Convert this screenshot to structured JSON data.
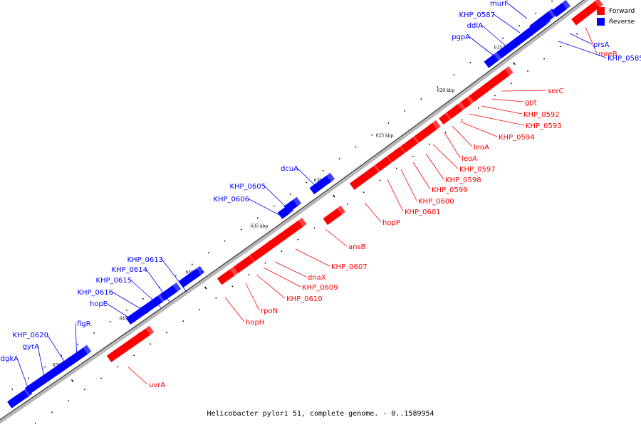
{
  "caption": "Helicobacter pylori 51, complete genome. - 0..1589954",
  "legend": [
    {
      "label": "Forward",
      "color": "#ff0000"
    },
    {
      "label": "Reverse",
      "color": "#0000ff"
    }
  ],
  "colors": {
    "forward": "#ff0000",
    "reverse": "#0000ff",
    "backbone": "#7a7a7a"
  },
  "ticks": [
    {
      "label": "615 kbp",
      "kbp": 615
    },
    {
      "label": "620 kbp",
      "kbp": 620
    },
    {
      "label": "625 kbp",
      "kbp": 625
    },
    {
      "label": "630 kbp",
      "kbp": 630
    },
    {
      "label": "635 kbp",
      "kbp": 635
    },
    {
      "label": "640 kbp",
      "kbp": 640
    },
    {
      "label": "645 kbp",
      "kbp": 645
    },
    {
      "label": "650 kbp",
      "kbp": 650
    }
  ],
  "genes": [
    {
      "name": "mreB",
      "strand": "forward"
    },
    {
      "name": "prsA",
      "strand": "reverse"
    },
    {
      "name": "KHP_0585",
      "strand": "reverse"
    },
    {
      "name": "murF",
      "strand": "reverse"
    },
    {
      "name": "KHP_0587",
      "strand": "reverse"
    },
    {
      "name": "ddlA",
      "strand": "reverse"
    },
    {
      "name": "pgpA",
      "strand": "reverse"
    },
    {
      "name": "serC",
      "strand": "forward"
    },
    {
      "name": "gpt",
      "strand": "forward"
    },
    {
      "name": "KHP_0592",
      "strand": "forward"
    },
    {
      "name": "KHP_0593",
      "strand": "forward"
    },
    {
      "name": "KHP_0594",
      "strand": "forward"
    },
    {
      "name": "leoA",
      "strand": "forward"
    },
    {
      "name": "leoA",
      "strand": "forward"
    },
    {
      "name": "KHP_0597",
      "strand": "forward"
    },
    {
      "name": "KHP_0598",
      "strand": "forward"
    },
    {
      "name": "KHP_0599",
      "strand": "forward"
    },
    {
      "name": "KHP_0600",
      "strand": "forward"
    },
    {
      "name": "KHP_0601",
      "strand": "forward"
    },
    {
      "name": "hopP",
      "strand": "forward"
    },
    {
      "name": "dcuA",
      "strand": "reverse"
    },
    {
      "name": "KHP_0605",
      "strand": "reverse"
    },
    {
      "name": "KHP_0606",
      "strand": "reverse"
    },
    {
      "name": "ansB",
      "strand": "forward"
    },
    {
      "name": "KHP_0607",
      "strand": "forward"
    },
    {
      "name": "dnaX",
      "strand": "forward"
    },
    {
      "name": "KHP_0609",
      "strand": "forward"
    },
    {
      "name": "KHP_0610",
      "strand": "forward"
    },
    {
      "name": "rpoN",
      "strand": "forward"
    },
    {
      "name": "hopH",
      "strand": "forward"
    },
    {
      "name": "KHP_0613",
      "strand": "reverse"
    },
    {
      "name": "KHP_0614",
      "strand": "reverse"
    },
    {
      "name": "KHP_0615",
      "strand": "reverse"
    },
    {
      "name": "KHP_0616",
      "strand": "reverse"
    },
    {
      "name": "hopE",
      "strand": "reverse"
    },
    {
      "name": "uvrA",
      "strand": "forward"
    },
    {
      "name": "flgR",
      "strand": "reverse"
    },
    {
      "name": "KHP_0620",
      "strand": "reverse"
    },
    {
      "name": "gyrA",
      "strand": "reverse"
    },
    {
      "name": "dgkA",
      "strand": "reverse"
    }
  ]
}
